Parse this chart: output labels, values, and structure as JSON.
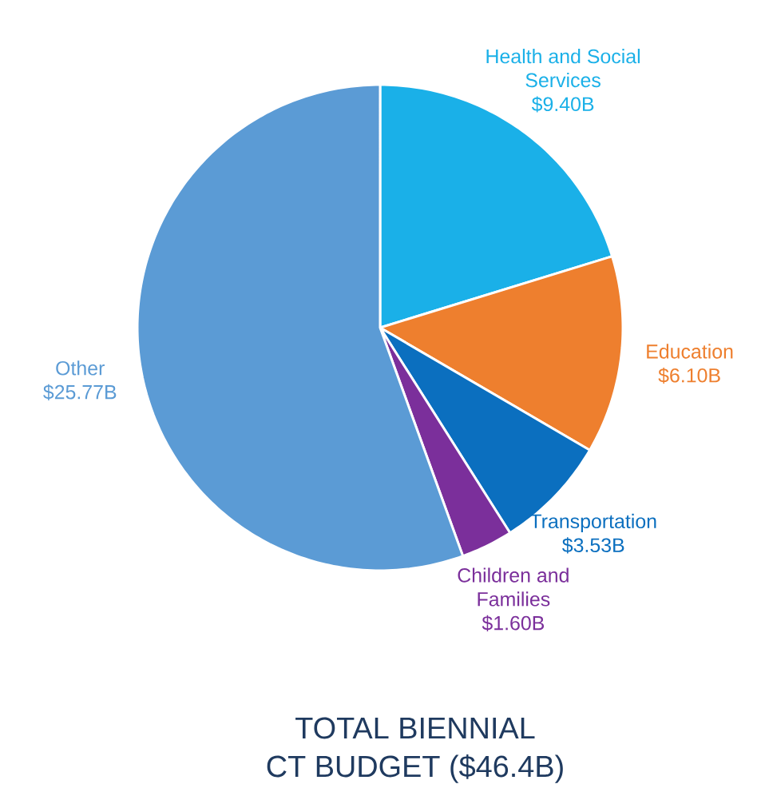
{
  "chart_data": {
    "type": "pie",
    "title": "TOTAL BIENNIAL",
    "subtitle": "CT BUDGET ($46.4B)",
    "categories": [
      "Health and Social Services",
      "Education",
      "Transportation",
      "Children and Families",
      "Other"
    ],
    "values": [
      9.4,
      6.1,
      3.53,
      1.6,
      25.77
    ],
    "value_labels": [
      "$9.40B",
      "$6.10B",
      "$3.53B",
      "$1.60B",
      "$25.77B"
    ],
    "colors": [
      "#1ab0e8",
      "#ee7f2e",
      "#0b6fbf",
      "#7b2f9b",
      "#5b9bd5"
    ]
  }
}
